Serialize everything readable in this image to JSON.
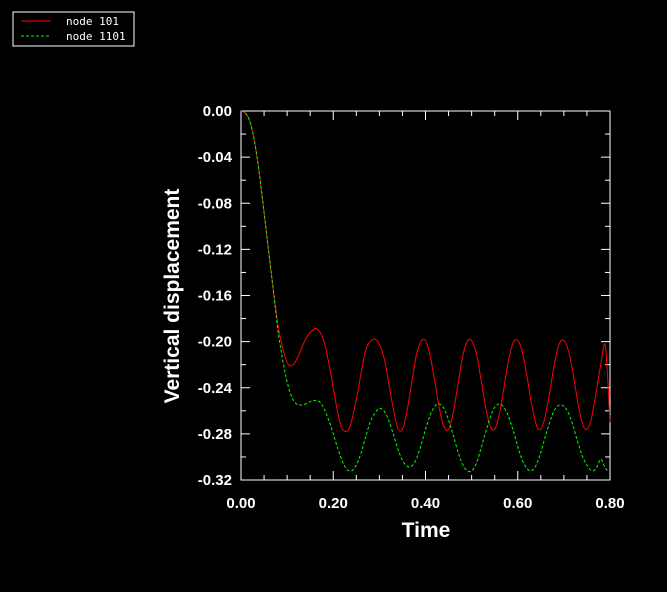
{
  "chart_data": {
    "type": "line",
    "title": "",
    "xlabel": "Time",
    "ylabel": "Vertical displacement",
    "xlim": [
      0.0,
      0.8
    ],
    "ylim": [
      -0.32,
      0.0
    ],
    "xticks": [
      "0.00",
      "0.20",
      "0.40",
      "0.60",
      "0.80"
    ],
    "yticks": [
      "0.00",
      "-0.04",
      "-0.08",
      "-0.12",
      "-0.16",
      "-0.20",
      "-0.24",
      "-0.28",
      "-0.32"
    ],
    "grid": false,
    "legend_placement": "top-left",
    "series": [
      {
        "name": "node 101",
        "color": "#ff0000",
        "style": "solid",
        "x": [
          0.0,
          0.01,
          0.02,
          0.03,
          0.04,
          0.05,
          0.06,
          0.07,
          0.08,
          0.09,
          0.1,
          0.11,
          0.12,
          0.13,
          0.14,
          0.15,
          0.165,
          0.18,
          0.19,
          0.2,
          0.21,
          0.22,
          0.235,
          0.25,
          0.26,
          0.27,
          0.28,
          0.295,
          0.31,
          0.32,
          0.33,
          0.34,
          0.35,
          0.36,
          0.37,
          0.38,
          0.39,
          0.4,
          0.41,
          0.42,
          0.43,
          0.44,
          0.45,
          0.46,
          0.47,
          0.48,
          0.49,
          0.5,
          0.51,
          0.52,
          0.53,
          0.54,
          0.55,
          0.56,
          0.57,
          0.58,
          0.59,
          0.6,
          0.61,
          0.62,
          0.63,
          0.64,
          0.65,
          0.66,
          0.67,
          0.68,
          0.69,
          0.7,
          0.71,
          0.72,
          0.73,
          0.74,
          0.75,
          0.76,
          0.77,
          0.78,
          0.79,
          0.8
        ],
        "y": [
          0.0,
          -0.002,
          -0.01,
          -0.028,
          -0.055,
          -0.088,
          -0.122,
          -0.155,
          -0.185,
          -0.205,
          -0.218,
          -0.221,
          -0.216,
          -0.207,
          -0.198,
          -0.192,
          -0.189,
          -0.2,
          -0.218,
          -0.24,
          -0.262,
          -0.276,
          -0.275,
          -0.25,
          -0.228,
          -0.208,
          -0.2,
          -0.199,
          -0.214,
          -0.235,
          -0.258,
          -0.275,
          -0.276,
          -0.26,
          -0.236,
          -0.212,
          -0.2,
          -0.199,
          -0.212,
          -0.234,
          -0.258,
          -0.274,
          -0.276,
          -0.262,
          -0.238,
          -0.214,
          -0.2,
          -0.199,
          -0.21,
          -0.232,
          -0.256,
          -0.273,
          -0.276,
          -0.263,
          -0.24,
          -0.216,
          -0.201,
          -0.199,
          -0.209,
          -0.23,
          -0.254,
          -0.272,
          -0.276,
          -0.264,
          -0.242,
          -0.218,
          -0.202,
          -0.199,
          -0.208,
          -0.228,
          -0.252,
          -0.271,
          -0.276,
          -0.266,
          -0.244,
          -0.22,
          -0.204,
          -0.27
        ]
      },
      {
        "name": "node 1101",
        "color": "#00ff00",
        "style": "dashed",
        "x": [
          0.0,
          0.01,
          0.02,
          0.03,
          0.04,
          0.05,
          0.06,
          0.07,
          0.08,
          0.09,
          0.1,
          0.11,
          0.12,
          0.13,
          0.14,
          0.15,
          0.16,
          0.17,
          0.18,
          0.19,
          0.2,
          0.21,
          0.22,
          0.23,
          0.24,
          0.25,
          0.26,
          0.27,
          0.28,
          0.29,
          0.3,
          0.31,
          0.32,
          0.33,
          0.34,
          0.35,
          0.36,
          0.37,
          0.38,
          0.39,
          0.4,
          0.41,
          0.42,
          0.43,
          0.44,
          0.45,
          0.46,
          0.47,
          0.48,
          0.49,
          0.5,
          0.51,
          0.52,
          0.53,
          0.54,
          0.55,
          0.56,
          0.57,
          0.58,
          0.59,
          0.6,
          0.61,
          0.62,
          0.63,
          0.64,
          0.65,
          0.66,
          0.67,
          0.68,
          0.69,
          0.7,
          0.71,
          0.72,
          0.73,
          0.74,
          0.75,
          0.76,
          0.77,
          0.78,
          0.79,
          0.8
        ],
        "y": [
          0.0,
          -0.002,
          -0.01,
          -0.028,
          -0.055,
          -0.088,
          -0.122,
          -0.155,
          -0.19,
          -0.215,
          -0.235,
          -0.248,
          -0.254,
          -0.255,
          -0.254,
          -0.252,
          -0.251,
          -0.252,
          -0.258,
          -0.268,
          -0.28,
          -0.293,
          -0.304,
          -0.311,
          -0.312,
          -0.307,
          -0.297,
          -0.283,
          -0.27,
          -0.262,
          -0.258,
          -0.26,
          -0.268,
          -0.28,
          -0.293,
          -0.303,
          -0.308,
          -0.308,
          -0.302,
          -0.29,
          -0.276,
          -0.264,
          -0.256,
          -0.254,
          -0.258,
          -0.268,
          -0.281,
          -0.295,
          -0.306,
          -0.312,
          -0.312,
          -0.306,
          -0.293,
          -0.279,
          -0.266,
          -0.257,
          -0.254,
          -0.257,
          -0.265,
          -0.277,
          -0.291,
          -0.303,
          -0.31,
          -0.312,
          -0.307,
          -0.296,
          -0.282,
          -0.269,
          -0.259,
          -0.255,
          -0.256,
          -0.262,
          -0.273,
          -0.287,
          -0.299,
          -0.307,
          -0.312,
          -0.31,
          -0.302,
          -0.31,
          -0.312
        ]
      }
    ]
  }
}
